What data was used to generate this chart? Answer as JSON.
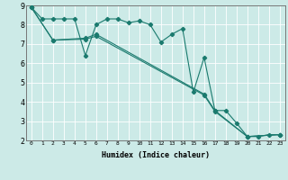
{
  "title": "",
  "xlabel": "Humidex (Indice chaleur)",
  "bg_color": "#cceae7",
  "grid_color": "#ffffff",
  "line_color": "#1a7a6e",
  "xlim": [
    -0.5,
    23.5
  ],
  "ylim": [
    2,
    9
  ],
  "yticks": [
    2,
    3,
    4,
    5,
    6,
    7,
    8,
    9
  ],
  "xticks": [
    0,
    1,
    2,
    3,
    4,
    5,
    6,
    7,
    8,
    9,
    10,
    11,
    12,
    13,
    14,
    15,
    16,
    17,
    18,
    19,
    20,
    21,
    22,
    23
  ],
  "line1_x": [
    0,
    1,
    2,
    3,
    4,
    5,
    6,
    7,
    8,
    9,
    10,
    11,
    12,
    13,
    14,
    15,
    16,
    17,
    18,
    19,
    20,
    21,
    22,
    23
  ],
  "line1_y": [
    8.9,
    8.3,
    8.3,
    8.3,
    8.3,
    6.4,
    8.0,
    8.3,
    8.3,
    8.1,
    8.2,
    8.0,
    7.1,
    7.5,
    7.8,
    4.5,
    6.3,
    3.55,
    3.55,
    2.9,
    2.2,
    2.2,
    2.3,
    2.3
  ],
  "line2_x": [
    0,
    2,
    5,
    6,
    16,
    17,
    20,
    23
  ],
  "line2_y": [
    8.9,
    7.2,
    7.3,
    7.5,
    4.4,
    3.55,
    2.2,
    2.3
  ],
  "line3_x": [
    0,
    2,
    5,
    6,
    16,
    17,
    20,
    23
  ],
  "line3_y": [
    8.9,
    7.2,
    7.25,
    7.4,
    4.35,
    3.5,
    2.2,
    2.3
  ],
  "xlabel_fontsize": 6.0,
  "tick_fontsize_x": 4.5,
  "tick_fontsize_y": 6.0,
  "linewidth": 0.8,
  "markersize": 2.2
}
